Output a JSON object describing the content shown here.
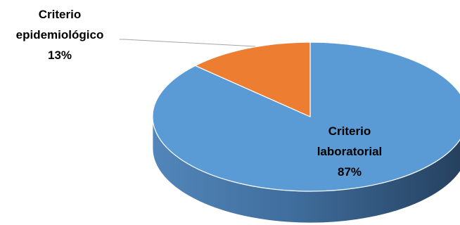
{
  "chart_data": {
    "type": "pie",
    "style": "3d",
    "slices": [
      {
        "label": "Criterio laboratorial",
        "label_lines": [
          "Criterio",
          "laboratorial",
          "87%"
        ],
        "value": 87,
        "value_label": "87%",
        "color": "#5B9BD5"
      },
      {
        "label": "Criterio epidemiológico",
        "label_lines": [
          "Criterio",
          "epidemiológico",
          "13%"
        ],
        "value": 13,
        "value_label": "13%",
        "color": "#ED7D31"
      }
    ],
    "legend": "none"
  }
}
